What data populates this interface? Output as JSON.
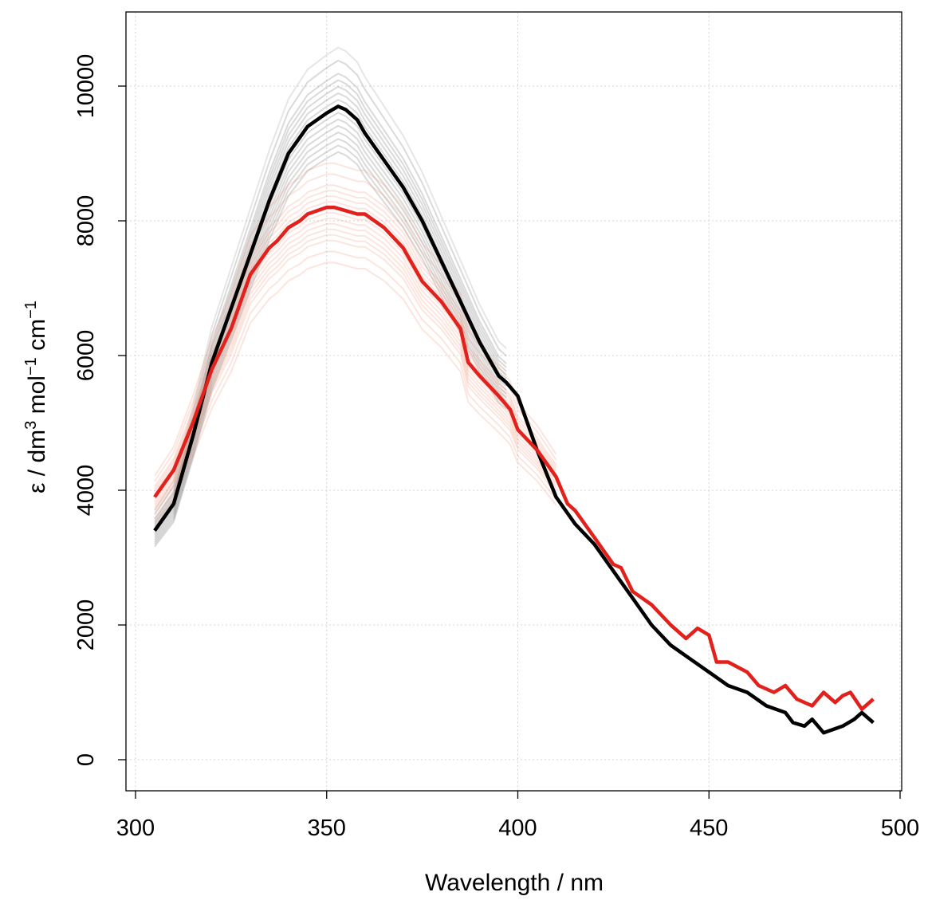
{
  "chart_data": {
    "type": "line",
    "title": "",
    "xlabel": "Wavelength / nm",
    "ylabel": {
      "prefix": "ε / dm",
      "sup1": "3",
      "mid1": " mol",
      "sup2": "−1",
      "mid2": " cm",
      "sup3": "−1"
    },
    "xlim": [
      300,
      500
    ],
    "ylim": [
      0,
      10500
    ],
    "xticks": [
      300,
      350,
      400,
      450,
      500
    ],
    "yticks": [
      0,
      2000,
      4000,
      6000,
      8000,
      10000
    ],
    "grid": true,
    "series": [
      {
        "color": "#000000",
        "x": [
          305,
          310,
          315,
          320,
          325,
          330,
          335,
          340,
          345,
          350,
          353,
          355,
          358,
          360,
          365,
          370,
          375,
          380,
          385,
          390,
          395,
          397,
          400,
          405,
          410,
          415,
          420,
          425,
          430,
          435,
          440,
          445,
          450,
          455,
          460,
          465,
          470,
          472,
          475,
          477,
          480,
          485,
          488,
          490,
          493
        ],
        "y": [
          3400,
          3800,
          4800,
          5900,
          6700,
          7500,
          8300,
          9000,
          9400,
          9600,
          9700,
          9650,
          9500,
          9300,
          8900,
          8500,
          8000,
          7400,
          6800,
          6200,
          5700,
          5600,
          5400,
          4600,
          3900,
          3500,
          3200,
          2800,
          2400,
          2000,
          1700,
          1500,
          1300,
          1100,
          1000,
          800,
          700,
          550,
          500,
          600,
          400,
          500,
          600,
          700,
          550
        ]
      },
      {
        "color": "#e2211c",
        "x": [
          305,
          310,
          315,
          320,
          325,
          330,
          335,
          337,
          340,
          343,
          345,
          350,
          352,
          355,
          358,
          360,
          365,
          370,
          375,
          380,
          385,
          387,
          390,
          395,
          398,
          400,
          405,
          410,
          413,
          415,
          420,
          425,
          427,
          430,
          435,
          440,
          444,
          447,
          450,
          452,
          455,
          460,
          463,
          467,
          470,
          473,
          477,
          480,
          483,
          485,
          487,
          490,
          493
        ],
        "y": [
          3900,
          4300,
          5000,
          5800,
          6400,
          7200,
          7600,
          7700,
          7900,
          8000,
          8100,
          8200,
          8200,
          8150,
          8100,
          8100,
          7900,
          7600,
          7100,
          6800,
          6400,
          5900,
          5700,
          5400,
          5200,
          4900,
          4600,
          4200,
          3800,
          3700,
          3300,
          2900,
          2850,
          2500,
          2300,
          2000,
          1800,
          1950,
          1850,
          1450,
          1450,
          1300,
          1100,
          1000,
          1100,
          900,
          800,
          1000,
          850,
          950,
          1000,
          750,
          900
        ]
      }
    ]
  }
}
